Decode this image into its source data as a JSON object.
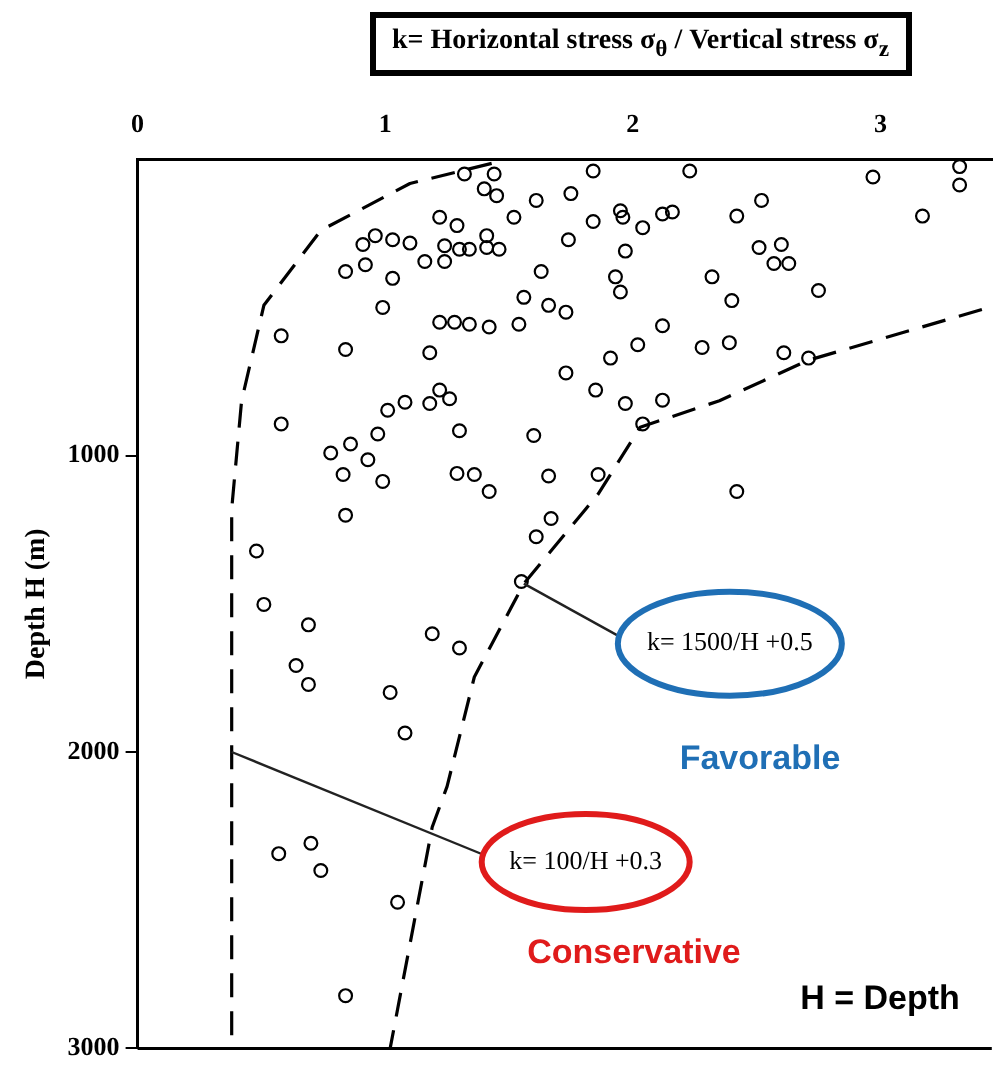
{
  "chart_data": {
    "type": "scatter",
    "xlabel": "k= Horizontal stress σ$_{θ}$ / Vertical stress σ$_{z}$",
    "ylabel": "Depth H (m)",
    "xlim": [
      0,
      3.45
    ],
    "xticks": [
      0,
      1,
      2,
      3
    ],
    "ylim": [
      3000,
      0
    ],
    "yticks": [
      1000,
      2000,
      3000
    ],
    "legend": false,
    "marker": "circle",
    "series": [
      {
        "color": "#000000",
        "x": [
          1.32,
          1.44,
          1.84,
          2.23,
          2.97,
          3.32,
          3.32,
          1.4,
          1.45,
          1.61,
          1.75,
          2.52,
          1.22,
          1.29,
          1.52,
          1.84,
          1.95,
          1.96,
          2.04,
          2.12,
          2.16,
          2.42,
          3.17,
          0.96,
          0.91,
          1.03,
          1.1,
          1.41,
          1.24,
          1.3,
          1.34,
          1.41,
          1.46,
          1.74,
          1.97,
          2.51,
          2.6,
          2.57,
          2.63,
          0.84,
          0.92,
          1.16,
          1.24,
          1.03,
          1.63,
          1.93,
          2.32,
          2.75,
          1.95,
          1.56,
          1.66,
          1.73,
          2.4,
          0.99,
          1.22,
          1.28,
          1.34,
          1.42,
          1.54,
          2.12,
          0.58,
          0.84,
          1.18,
          1.91,
          2.02,
          2.28,
          2.39,
          2.61,
          2.71,
          1.73,
          1.85,
          1.97,
          2.12,
          1.22,
          1.26,
          1.18,
          1.08,
          1.01,
          0.58,
          0.97,
          1.3,
          1.6,
          2.04,
          0.78,
          0.86,
          0.93,
          0.83,
          0.99,
          1.29,
          1.36,
          1.42,
          1.66,
          1.86,
          2.42,
          0.84,
          0.48,
          0.51,
          0.69,
          0.64,
          0.69,
          1.19,
          1.3,
          1.02,
          1.08,
          1.61,
          1.67,
          1.55,
          0.57,
          0.7,
          0.74,
          1.05,
          0.84
        ],
        "values": [
          50,
          50,
          40,
          40,
          60,
          25,
          87,
          100,
          123,
          139,
          116,
          139,
          196,
          224,
          196,
          210,
          174,
          196,
          231,
          185,
          178,
          192,
          192,
          258,
          288,
          272,
          283,
          258,
          292,
          304,
          304,
          298,
          304,
          272,
          310,
          298,
          288,
          352,
          352,
          379,
          356,
          345,
          345,
          402,
          379,
          397,
          397,
          443,
          448,
          466,
          493,
          516,
          477,
          500,
          550,
          550,
          557,
          566,
          557,
          562,
          596,
          642,
          653,
          671,
          626,
          635,
          619,
          653,
          671,
          721,
          779,
          824,
          813,
          779,
          808,
          824,
          820,
          847,
          893,
          927,
          916,
          932,
          893,
          991,
          961,
          1014,
          1064,
          1087,
          1060,
          1064,
          1121,
          1069,
          1064,
          1121,
          1201,
          1322,
          1502,
          1571,
          1708,
          1772,
          1601,
          1649,
          1799,
          1936,
          1274,
          1212,
          1425,
          2343,
          2308,
          2400,
          2507,
          2822
        ]
      },
      {
        "type": "line",
        "color": "#000000",
        "line_style": "dashed",
        "marker": "none",
        "x": [
          1.43,
          1.1,
          0.74,
          0.51,
          0.42,
          0.38,
          0.38,
          0.38
        ],
        "values": [
          14,
          82,
          240,
          493,
          815,
          1180,
          2000,
          3000
        ]
      },
      {
        "type": "line",
        "color": "#000000",
        "line_style": "dashed",
        "marker": "none",
        "x": [
          3.41,
          2.71,
          2.35,
          2.03,
          1.86,
          1.56,
          1.36,
          1.25,
          1.19,
          1.02
        ],
        "values": [
          507,
          678,
          815,
          904,
          1130,
          1432,
          1747,
          2116,
          2253,
          3000
        ]
      }
    ],
    "annotations": [
      {
        "text": "k= 1500/H +0.5",
        "x": 1.56,
        "y": 1432
      },
      {
        "text": "k= 100/H +0.3",
        "x": 0.38,
        "y": 2000
      },
      "Favorable",
      "Conservative",
      "H = Depth"
    ]
  }
}
